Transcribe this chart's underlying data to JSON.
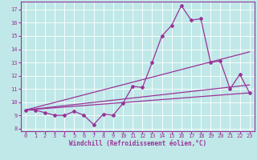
{
  "bg_color": "#c0e8e8",
  "plot_bg_color": "#c0e8e8",
  "line_color": "#993399",
  "grid_color": "#ffffff",
  "xlabel": "Windchill (Refroidissement éolien,°C)",
  "ylim": [
    7.8,
    17.6
  ],
  "xlim": [
    -0.5,
    23.5
  ],
  "yticks": [
    8,
    9,
    10,
    11,
    12,
    13,
    14,
    15,
    16,
    17
  ],
  "xticks": [
    0,
    1,
    2,
    3,
    4,
    5,
    6,
    7,
    8,
    9,
    10,
    11,
    12,
    13,
    14,
    15,
    16,
    17,
    18,
    19,
    20,
    21,
    22,
    23
  ],
  "main_x": [
    0,
    1,
    2,
    3,
    4,
    5,
    6,
    7,
    8,
    9,
    10,
    11,
    12,
    13,
    14,
    15,
    16,
    17,
    18,
    19,
    20,
    21,
    22,
    23
  ],
  "main_y": [
    9.4,
    9.4,
    9.2,
    9.0,
    9.0,
    9.3,
    9.0,
    8.3,
    9.1,
    9.0,
    9.9,
    11.2,
    11.1,
    13.0,
    15.0,
    15.8,
    17.3,
    16.2,
    16.3,
    13.0,
    13.1,
    11.0,
    12.1,
    10.7
  ],
  "trend1_x": [
    0,
    23
  ],
  "trend1_y": [
    9.4,
    13.8
  ],
  "trend2_x": [
    0,
    23
  ],
  "trend2_y": [
    9.4,
    11.3
  ],
  "trend3_x": [
    0,
    23
  ],
  "trend3_y": [
    9.4,
    10.7
  ],
  "tick_fontsize": 5.0,
  "xlabel_fontsize": 5.5,
  "linewidth": 0.9,
  "markersize": 2.0
}
